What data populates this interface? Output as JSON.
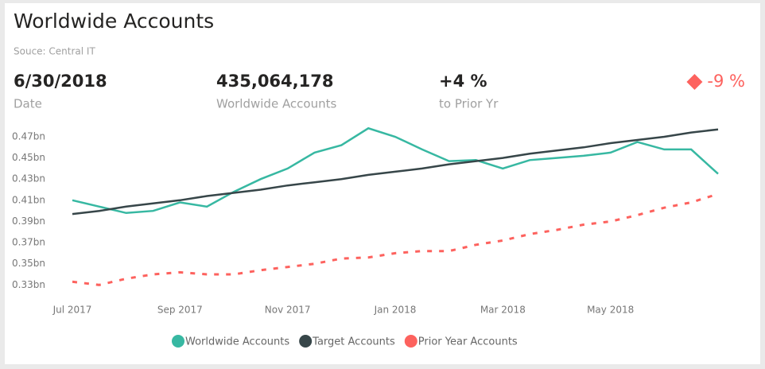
{
  "header": {
    "title": "Worldwide Accounts",
    "source": "Souce: Central IT"
  },
  "kpis": [
    {
      "value": "6/30/2018",
      "label": "Date"
    },
    {
      "value": "435,064,178",
      "label": "Worldwide Accounts"
    },
    {
      "value": "+4 %",
      "label": "to Prior Yr"
    },
    {
      "value": "-9 %",
      "color": "#fd625e"
    }
  ],
  "chart_data": {
    "type": "line",
    "categories": [
      "Jul 2017",
      null,
      null,
      null,
      "Sep 2017",
      null,
      null,
      null,
      "Nov 2017",
      null,
      null,
      null,
      "Jan 2018",
      null,
      null,
      null,
      "Mar 2018",
      null,
      null,
      null,
      "May 2018",
      null,
      null,
      null,
      null
    ],
    "series": [
      {
        "name": "Worldwide Accounts",
        "color": "#37b8a2",
        "values": [
          0.41,
          0.404,
          0.398,
          0.4,
          0.408,
          0.404,
          0.418,
          0.43,
          0.44,
          0.455,
          0.462,
          0.478,
          0.47,
          0.458,
          0.447,
          0.448,
          0.44,
          0.448,
          0.45,
          0.452,
          0.455,
          0.465,
          0.458,
          0.458,
          0.435
        ]
      },
      {
        "name": "Target Accounts",
        "color": "#374649",
        "values": [
          0.397,
          0.4,
          0.404,
          0.407,
          0.41,
          0.414,
          0.417,
          0.42,
          0.424,
          0.427,
          0.43,
          0.434,
          0.437,
          0.44,
          0.444,
          0.447,
          0.45,
          0.454,
          0.457,
          0.46,
          0.464,
          0.467,
          0.47,
          0.474,
          0.477
        ]
      },
      {
        "name": "Prior Year Accounts",
        "color": "#fd625e",
        "dashed": true,
        "values": [
          0.333,
          0.33,
          0.336,
          0.34,
          0.342,
          0.34,
          0.34,
          0.344,
          0.347,
          0.35,
          0.355,
          0.356,
          0.36,
          0.362,
          0.362,
          0.368,
          0.372,
          0.378,
          0.382,
          0.387,
          0.39,
          0.396,
          0.403,
          0.408,
          0.416
        ]
      }
    ],
    "ylim": [
      0.325,
      0.485
    ],
    "yticks": [
      {
        "value": 0.33,
        "label": "0.33bn"
      },
      {
        "value": 0.35,
        "label": "0.35bn"
      },
      {
        "value": 0.37,
        "label": "0.37bn"
      },
      {
        "value": 0.39,
        "label": "0.39bn"
      },
      {
        "value": 0.41,
        "label": "0.41bn"
      },
      {
        "value": 0.43,
        "label": "0.43bn"
      },
      {
        "value": 0.45,
        "label": "0.45bn"
      },
      {
        "value": 0.47,
        "label": "0.47bn"
      }
    ],
    "grid": false
  }
}
